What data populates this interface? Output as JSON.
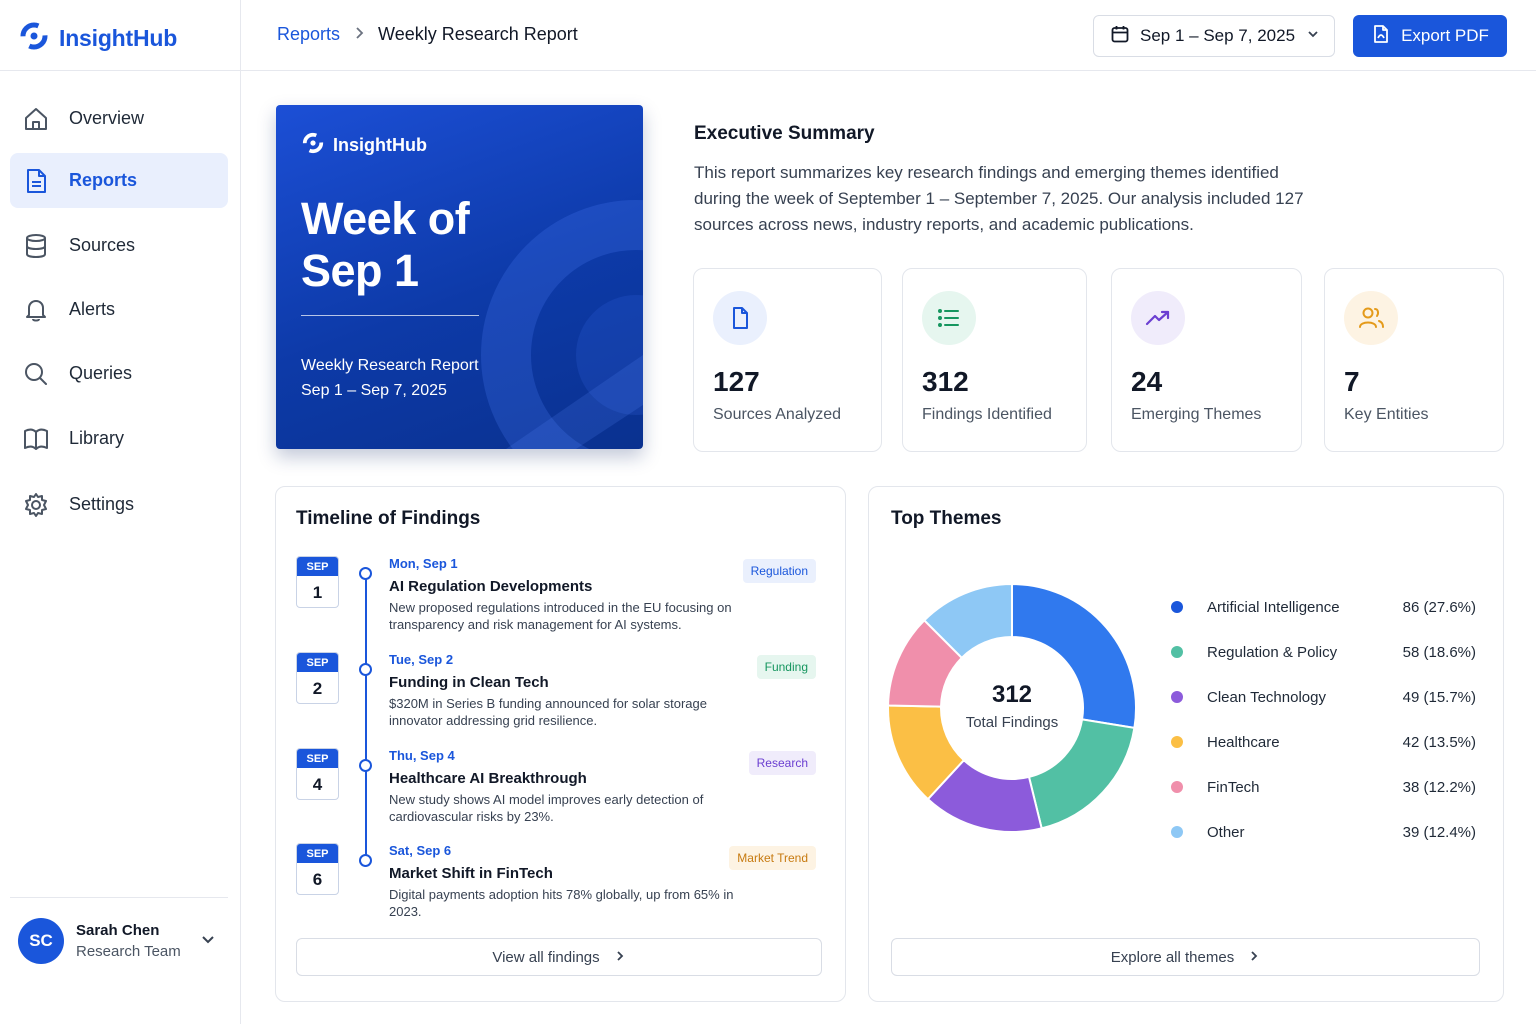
{
  "app": {
    "name": "InsightHub",
    "brand_color": "#1a56db"
  },
  "sidebar": {
    "items": [
      {
        "label": "Overview",
        "icon": "home-icon"
      },
      {
        "label": "Reports",
        "icon": "document-icon",
        "active": true
      },
      {
        "label": "Sources",
        "icon": "database-icon"
      },
      {
        "label": "Alerts",
        "icon": "bell-icon"
      },
      {
        "label": "Queries",
        "icon": "search-icon"
      },
      {
        "label": "Library",
        "icon": "book-icon"
      },
      {
        "label": "Settings",
        "icon": "gear-icon"
      }
    ],
    "user": {
      "initials": "SC",
      "name": "Sarah Chen",
      "team": "Research Team"
    }
  },
  "header": {
    "breadcrumb": {
      "parent": "Reports",
      "current": "Weekly Research Report"
    },
    "date_range": "Sep 1 – Sep 7, 2025",
    "export_label": "Export PDF"
  },
  "cover": {
    "brand": "InsightHub",
    "title": "Week of\nSep 1",
    "subtitle": "Weekly Research Report",
    "dates": "Sep 1 – Sep 7, 2025"
  },
  "summary": {
    "title": "Executive Summary",
    "text": "This report summarizes key research findings and emerging themes identified during the week of September 1 – September 7, 2025. Our analysis included 127 sources across news, industry reports, and academic publications."
  },
  "stats": [
    {
      "value": "127",
      "label": "Sources Analyzed",
      "icon": "file-icon",
      "color": "#1a56db",
      "bg": "#eaf0fd"
    },
    {
      "value": "312",
      "label": "Findings Identified",
      "icon": "list-icon",
      "color": "#16965f",
      "bg": "#e6f6ef"
    },
    {
      "value": "24",
      "label": "Emerging Themes",
      "icon": "trend-up-icon",
      "color": "#6b3fd1",
      "bg": "#f0ecfb"
    },
    {
      "value": "7",
      "label": "Key Entities",
      "icon": "users-icon",
      "color": "#e49a1a",
      "bg": "#fdf3e3"
    }
  ],
  "timeline": {
    "title": "Timeline of Findings",
    "items": [
      {
        "month": "SEP",
        "day": "1",
        "date": "Mon, Sep 1",
        "title": "AI Regulation Developments",
        "desc": "New proposed regulations introduced in the EU focusing on transparency and risk management for AI systems.",
        "tag": "Regulation"
      },
      {
        "month": "SEP",
        "day": "2",
        "date": "Tue, Sep 2",
        "title": "Funding in Clean Tech",
        "desc": "$320M in Series B funding announced for solar storage innovator addressing grid resilience.",
        "tag": "Funding"
      },
      {
        "month": "SEP",
        "day": "4",
        "date": "Thu, Sep 4",
        "title": "Healthcare AI Breakthrough",
        "desc": "New study shows AI model improves early detection of cardiovascular risks by 23%.",
        "tag": "Research"
      },
      {
        "month": "SEP",
        "day": "6",
        "date": "Sat, Sep 6",
        "title": "Market Shift in FinTech",
        "desc": "Digital payments adoption hits 78% globally, up from 65% in 2023.",
        "tag": "Market Trend"
      }
    ],
    "view_all": "View all findings"
  },
  "themes": {
    "title": "Top Themes",
    "total": "312",
    "total_label": "Total Findings",
    "explore": "Explore all themes"
  },
  "chart_data": {
    "type": "pie",
    "variant": "donut",
    "total": 312,
    "categories": [
      "Artificial Intelligence",
      "Regulation & Policy",
      "Clean Technology",
      "Healthcare",
      "FinTech",
      "Other"
    ],
    "values": [
      86,
      58,
      49,
      42,
      38,
      39
    ],
    "value_labels": [
      "86 (27.6%)",
      "58 (18.6%)",
      "49 (15.7%)",
      "42 (13.5%)",
      "38 (12.2%)",
      "39 (12.4%)"
    ],
    "colors": [
      "#3079ee",
      "#52c0a4",
      "#8c5bdb",
      "#fbbf45",
      "#f08fab",
      "#8ec8f5"
    ]
  }
}
